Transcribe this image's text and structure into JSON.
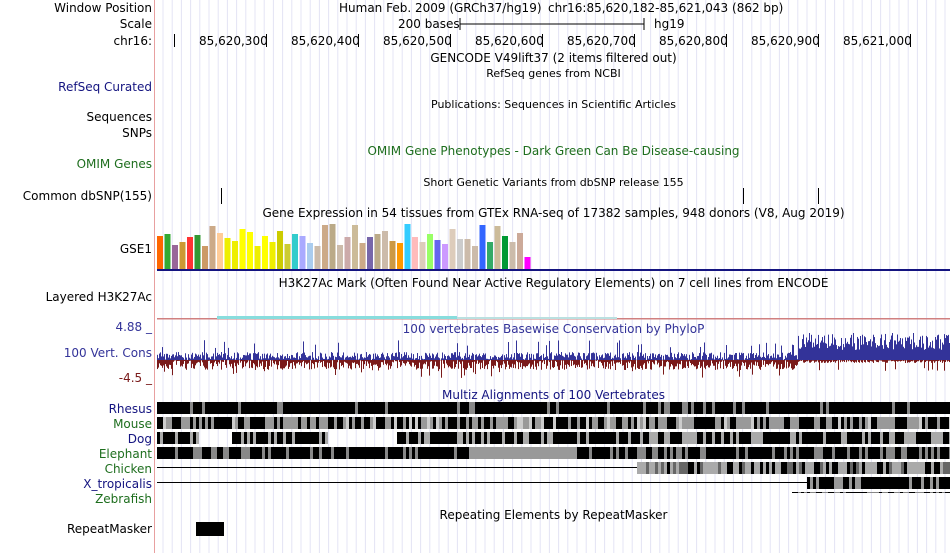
{
  "header": {
    "window_position_label": "Window Position",
    "scale_label": "Scale",
    "chrom_label": "chr16:",
    "assembly_text": "Human Feb. 2009 (GRCh37/hg19)",
    "position_text": "chr16:85,620,182-85,621,043 (862 bp)",
    "scale_text": "200 bases",
    "scale_db": "hg19",
    "ticks": [
      "85,620,300",
      "85,620,400",
      "85,620,500",
      "85,620,600",
      "85,620,700",
      "85,620,800",
      "85,620,900",
      "85,621,000"
    ]
  },
  "tracks": {
    "gencode_title": "GENCODE V49lift37 (2 items filtered out)",
    "refseq_title": "RefSeq genes from NCBI",
    "refseq_label": "RefSeq Curated",
    "publications_title": "Publications: Sequences in Scientific Articles",
    "sequences_label": "Sequences",
    "snps_label": "SNPs",
    "omim_title": "OMIM Gene Phenotypes - Dark Green Can Be Disease-causing",
    "omim_label": "OMIM Genes",
    "dbsnp_title": "Short Genetic Variants from dbSNP release 155",
    "dbsnp_label": "Common dbSNP(155)",
    "gtex_title": "Gene Expression in 54 tissues from GTEx RNA-seq of 17382 samples, 948 donors (V8, Aug 2019)",
    "gtex_label": "GSE1",
    "h3k27ac_title": "H3K27Ac Mark (Often Found Near Active Regulatory Elements) on 7 cell lines from ENCODE",
    "h3k27ac_label": "Layered H3K27Ac",
    "phylop_title": "100 vertebrates Basewise Conservation by PhyloP",
    "phylop_label": "100 Vert. Cons",
    "phylop_max": "4.88 _",
    "phylop_min": "-4.5 _",
    "multiz_title": "Multiz Alignments of 100 Vertebrates",
    "species": [
      "Rhesus",
      "Mouse",
      "Dog",
      "Elephant",
      "Chicken",
      "X_tropicalis",
      "Zebrafish"
    ],
    "repeat_title": "Repeating Elements by RepeatMasker",
    "repeat_label": "RepeatMasker"
  },
  "colors": {
    "blue_label": "#141480",
    "green_label": "#1e6e1e",
    "phylop_pos": "#333399",
    "phylop_neg": "#7a1a1a",
    "phylop_label": "#333399",
    "phylop_min": "#7a1a1a"
  },
  "gtex_colors": [
    "#ff6600",
    "#33aa33",
    "#996699",
    "#cc9933",
    "#ff3333",
    "#339933",
    "#cc9966",
    "#ccaa88",
    "#ffcc99",
    "#eeee00",
    "#eeee00",
    "#ffff00",
    "#ffff00",
    "#eeee00",
    "#ffff00",
    "#eeee00",
    "#cccc00",
    "#cccc33",
    "#33cccc",
    "#aaaaff",
    "#aaccee",
    "#ccbbaa",
    "#ccaa88",
    "#bbaa88",
    "#ccbbaa",
    "#ccaaaa",
    "#ccbb99",
    "#ccaa88",
    "#7766aa",
    "#bbaa88",
    "#ccbbaa",
    "#cc9944",
    "#ff9900",
    "#33ccff",
    "#ffbbbb",
    "#ddccbb",
    "#99ff66",
    "#6666ee",
    "#cc99ff",
    "#ddccbb",
    "#cccccc",
    "#ccbbaa",
    "#ccbbaa",
    "#3366ff",
    "#33aa66",
    "#ccbb99",
    "#009933",
    "#ccbbaa",
    "#ccaa99",
    "#ff00ff"
  ]
}
